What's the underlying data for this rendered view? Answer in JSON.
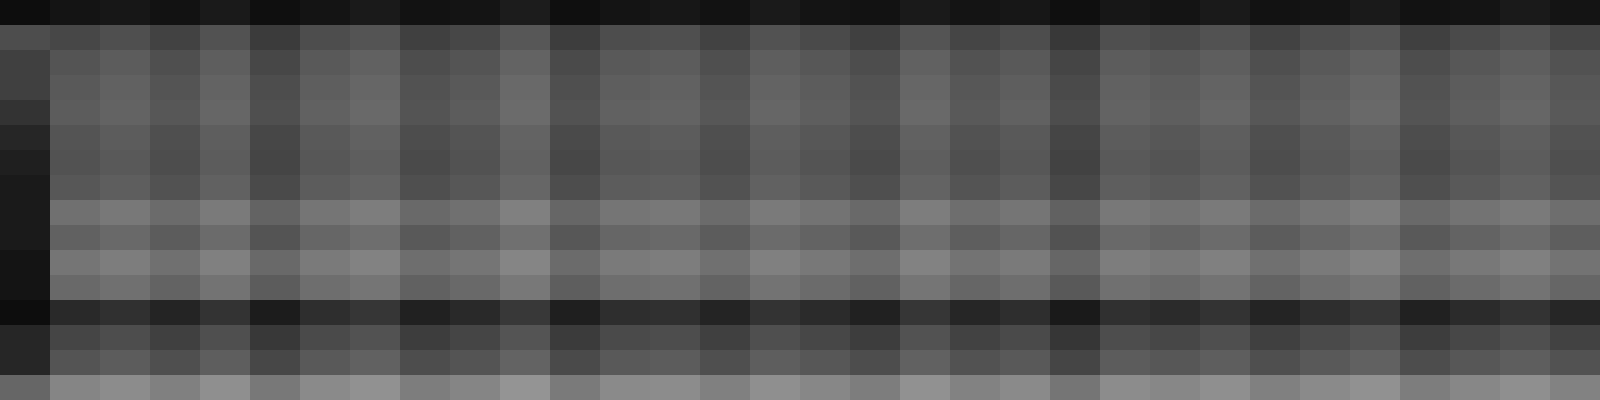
{
  "chart_data": {
    "type": "heatmap",
    "tick_labels": false,
    "color": "#ffffff",
    "zlim": [
      0,
      100
    ],
    "cells": [
      [
        5,
        8,
        9,
        7,
        10,
        6,
        8,
        10,
        7,
        8,
        11,
        6,
        8,
        9,
        7,
        10,
        8,
        7,
        10,
        8,
        9,
        6,
        9,
        8,
        10,
        7,
        8,
        10,
        7,
        8,
        10,
        8
      ],
      [
        30,
        28,
        31,
        26,
        32,
        23,
        30,
        33,
        25,
        28,
        34,
        24,
        30,
        31,
        26,
        32,
        29,
        25,
        33,
        27,
        30,
        22,
        31,
        29,
        32,
        26,
        30,
        33,
        25,
        29,
        32,
        27
      ],
      [
        25,
        33,
        36,
        31,
        37,
        28,
        35,
        38,
        30,
        33,
        39,
        29,
        35,
        36,
        31,
        37,
        34,
        30,
        38,
        32,
        35,
        27,
        36,
        34,
        37,
        31,
        35,
        38,
        30,
        34,
        37,
        32
      ],
      [
        25,
        35,
        38,
        33,
        39,
        30,
        37,
        40,
        32,
        35,
        41,
        31,
        37,
        38,
        33,
        39,
        36,
        32,
        40,
        34,
        37,
        29,
        38,
        36,
        39,
        33,
        37,
        40,
        32,
        36,
        39,
        34
      ],
      [
        20,
        36,
        39,
        34,
        40,
        31,
        38,
        41,
        33,
        36,
        42,
        32,
        38,
        39,
        34,
        40,
        37,
        33,
        41,
        35,
        38,
        30,
        39,
        37,
        40,
        34,
        38,
        41,
        33,
        37,
        40,
        35
      ],
      [
        15,
        33,
        36,
        31,
        37,
        28,
        35,
        38,
        30,
        33,
        39,
        29,
        35,
        36,
        31,
        37,
        34,
        30,
        38,
        32,
        35,
        27,
        36,
        34,
        37,
        31,
        35,
        38,
        30,
        34,
        37,
        32
      ],
      [
        12,
        32,
        35,
        30,
        36,
        27,
        34,
        37,
        29,
        32,
        38,
        28,
        34,
        35,
        30,
        36,
        33,
        29,
        37,
        31,
        34,
        26,
        35,
        33,
        36,
        30,
        34,
        37,
        29,
        33,
        36,
        31
      ],
      [
        10,
        34,
        37,
        32,
        38,
        29,
        36,
        39,
        31,
        34,
        40,
        30,
        36,
        37,
        32,
        38,
        35,
        31,
        39,
        33,
        36,
        28,
        37,
        35,
        38,
        32,
        36,
        39,
        31,
        35,
        38,
        33
      ],
      [
        10,
        44,
        47,
        42,
        48,
        39,
        46,
        49,
        41,
        44,
        50,
        40,
        46,
        47,
        42,
        48,
        45,
        41,
        49,
        43,
        46,
        38,
        47,
        45,
        48,
        42,
        46,
        49,
        41,
        45,
        48,
        43
      ],
      [
        10,
        38,
        41,
        36,
        42,
        33,
        40,
        43,
        35,
        38,
        44,
        34,
        40,
        41,
        36,
        42,
        39,
        35,
        43,
        37,
        40,
        32,
        41,
        39,
        42,
        36,
        40,
        43,
        35,
        39,
        42,
        37
      ],
      [
        8,
        46,
        49,
        44,
        50,
        41,
        48,
        51,
        43,
        46,
        52,
        42,
        48,
        49,
        44,
        50,
        47,
        43,
        51,
        45,
        48,
        40,
        49,
        47,
        50,
        44,
        48,
        51,
        43,
        47,
        50,
        45
      ],
      [
        8,
        41,
        44,
        39,
        45,
        36,
        43,
        46,
        38,
        41,
        47,
        37,
        43,
        44,
        39,
        45,
        42,
        38,
        46,
        40,
        43,
        35,
        44,
        42,
        45,
        39,
        43,
        46,
        38,
        42,
        45,
        40
      ],
      [
        5,
        16,
        19,
        14,
        20,
        11,
        18,
        21,
        13,
        16,
        22,
        12,
        18,
        19,
        14,
        20,
        17,
        13,
        21,
        15,
        18,
        10,
        19,
        17,
        20,
        14,
        18,
        21,
        13,
        17,
        20,
        15
      ],
      [
        15,
        27,
        30,
        25,
        31,
        22,
        29,
        32,
        24,
        27,
        33,
        23,
        29,
        30,
        25,
        31,
        28,
        24,
        32,
        26,
        29,
        21,
        30,
        28,
        31,
        25,
        29,
        32,
        24,
        28,
        31,
        26
      ],
      [
        15,
        33,
        36,
        31,
        37,
        28,
        35,
        38,
        30,
        33,
        39,
        29,
        35,
        36,
        31,
        37,
        34,
        30,
        38,
        32,
        35,
        27,
        36,
        34,
        37,
        31,
        35,
        38,
        30,
        34,
        37,
        32
      ],
      [
        40,
        52,
        55,
        50,
        56,
        47,
        54,
        57,
        49,
        52,
        58,
        48,
        54,
        55,
        50,
        56,
        53,
        49,
        57,
        51,
        54,
        46,
        55,
        53,
        56,
        50,
        54,
        57,
        49,
        53,
        56,
        51
      ]
    ]
  }
}
